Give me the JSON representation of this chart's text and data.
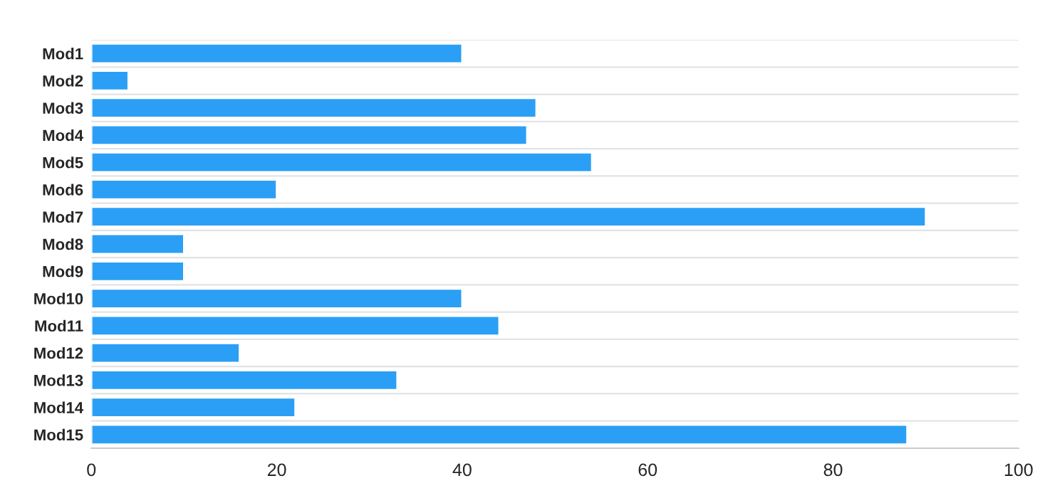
{
  "chart_data": {
    "type": "bar",
    "orientation": "horizontal",
    "categories": [
      "Mod1",
      "Mod2",
      "Mod3",
      "Mod4",
      "Mod5",
      "Mod6",
      "Mod7",
      "Mod8",
      "Mod9",
      "Mod10",
      "Mod11",
      "Mod12",
      "Mod13",
      "Mod14",
      "Mod15"
    ],
    "values": [
      40,
      4,
      48,
      47,
      54,
      20,
      90,
      10,
      10,
      40,
      44,
      16,
      33,
      22,
      88
    ],
    "color": "#2b9ff5",
    "xlim": [
      0,
      100
    ],
    "xticks": [
      0,
      20,
      40,
      60,
      80,
      100
    ],
    "grid": "y"
  }
}
